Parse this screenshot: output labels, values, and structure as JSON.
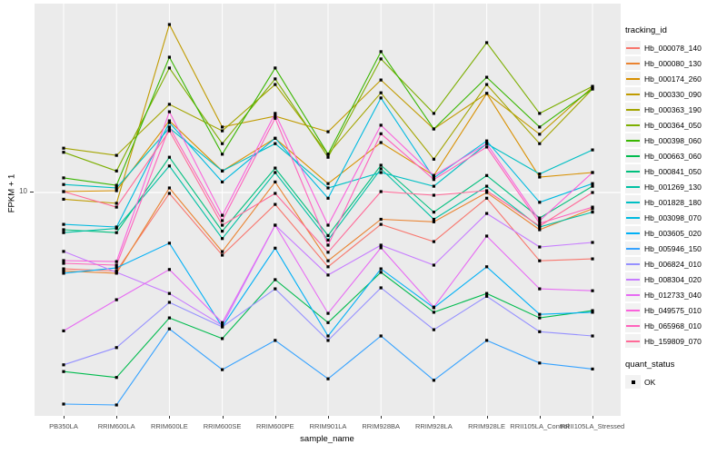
{
  "figure": {
    "y_axis_title": "FPKM + 1",
    "x_axis_title": "sample_name",
    "y_tick_label": "10",
    "panel_bg": "#EBEBEB",
    "gridline_color": "#FFFFFF",
    "point_color": "#000000",
    "tick_label_color": "#4D4D4D"
  },
  "legend": {
    "tracking_title": "tracking_id",
    "quant_title": "quant_status",
    "quant_items": [
      {
        "label": "OK",
        "marker": "black-square"
      }
    ]
  },
  "chart_data": {
    "type": "line",
    "title": "",
    "xlabel": "sample_name",
    "ylabel": "FPKM + 1",
    "y_scale": "log10",
    "y_ticks": [
      10
    ],
    "ylim_approx": [
      1,
      76
    ],
    "grid": "on",
    "legend_position": "right",
    "point_shape": "square",
    "quant_status_all": "OK",
    "categories": [
      "PB350LA",
      "RRIM600LA",
      "RRIM600LE",
      "RRIM600SE",
      "RRIM600PE",
      "RRIM901LA",
      "RRIM928BA",
      "RRIM928LA",
      "RRIM928LE",
      "RRII105LA_Control",
      "RRII105LA_Stressed"
    ],
    "series": [
      {
        "name": "Hb_000078_140",
        "color": "#F8766D",
        "values": [
          4.4,
          4.3,
          9.9,
          5.1,
          8.8,
          4.5,
          7.1,
          5.9,
          9.4,
          4.8,
          4.9
        ]
      },
      {
        "name": "Hb_000080_130",
        "color": "#EA8331",
        "values": [
          4.3,
          4.2,
          10.5,
          5.3,
          11.2,
          4.8,
          7.5,
          7.3,
          10.0,
          6.7,
          8.4
        ]
      },
      {
        "name": "Hb_000174_260",
        "color": "#D89000",
        "values": [
          10.1,
          10.2,
          21.6,
          12.6,
          17.9,
          11.0,
          17.1,
          12.0,
          29.0,
          11.8,
          12.4
        ]
      },
      {
        "name": "Hb_000330_090",
        "color": "#C09B00",
        "values": [
          9.3,
          8.9,
          60.8,
          20.2,
          22.7,
          19.2,
          33.5,
          19.8,
          29.0,
          18.7,
          31.0
        ]
      },
      {
        "name": "Hb_000363_190",
        "color": "#A3A500",
        "values": [
          16.1,
          14.9,
          25.8,
          19.4,
          31.9,
          15.1,
          29.2,
          14.3,
          31.9,
          16.9,
          30.4
        ]
      },
      {
        "name": "Hb_000364_050",
        "color": "#7CAE00",
        "values": [
          15.4,
          12.6,
          38.1,
          16.9,
          33.9,
          14.6,
          42.0,
          23.4,
          50.0,
          23.4,
          31.3
        ]
      },
      {
        "name": "Hb_000398_060",
        "color": "#39B600",
        "values": [
          11.7,
          10.8,
          42.8,
          15.1,
          38.1,
          15.1,
          45.4,
          19.8,
          34.5,
          20.2,
          30.4
        ]
      },
      {
        "name": "Hb_000663_060",
        "color": "#00BB4E",
        "values": [
          1.46,
          1.37,
          2.6,
          2.08,
          3.92,
          2.47,
          4.24,
          2.76,
          3.38,
          2.6,
          2.81
        ]
      },
      {
        "name": "Hb_000841_050",
        "color": "#00BF7D",
        "values": [
          6.7,
          6.5,
          14.6,
          6.6,
          13.0,
          6.3,
          13.4,
          8.1,
          12.0,
          7.6,
          10.7
        ]
      },
      {
        "name": "Hb_001269_130",
        "color": "#00C1A3",
        "values": [
          6.5,
          6.8,
          13.3,
          6.1,
          12.4,
          6.0,
          12.9,
          7.5,
          10.7,
          6.9,
          8.1
        ]
      },
      {
        "name": "Hb_001828_180",
        "color": "#00BFC4",
        "values": [
          10.9,
          10.5,
          20.0,
          12.6,
          16.9,
          10.5,
          12.4,
          10.7,
          16.9,
          12.2,
          15.8
        ]
      },
      {
        "name": "Hb_003098_070",
        "color": "#00BAE0",
        "values": [
          7.1,
          6.9,
          21.2,
          11.2,
          17.9,
          9.4,
          27.6,
          11.7,
          17.4,
          9.0,
          11.0
        ]
      },
      {
        "name": "Hb_003605_020",
        "color": "#00B0F6",
        "values": [
          4.2,
          4.45,
          5.8,
          2.36,
          5.5,
          2.14,
          4.4,
          2.9,
          4.5,
          2.7,
          2.76
        ]
      },
      {
        "name": "Hb_005946_150",
        "color": "#35A2FF",
        "values": [
          1.03,
          1.02,
          2.31,
          1.49,
          2.04,
          1.35,
          2.14,
          1.33,
          2.04,
          1.6,
          1.5
        ]
      },
      {
        "name": "Hb_006824_010",
        "color": "#9590FF",
        "values": [
          1.57,
          1.89,
          3.07,
          2.36,
          3.55,
          2.04,
          3.59,
          2.29,
          3.28,
          2.24,
          2.14
        ]
      },
      {
        "name": "Hb_008304_020",
        "color": "#C77CFF",
        "values": [
          5.31,
          4.24,
          3.38,
          2.4,
          7.04,
          4.12,
          5.68,
          4.58,
          7.98,
          5.57,
          5.85
        ]
      },
      {
        "name": "Hb_012733_040",
        "color": "#E76BF3",
        "values": [
          2.26,
          3.16,
          4.37,
          2.47,
          7.04,
          2.73,
          5.52,
          2.92,
          6.26,
          3.55,
          3.48
        ]
      },
      {
        "name": "Hb_049575_010",
        "color": "#FA62DB",
        "values": [
          4.81,
          4.76,
          23.8,
          7.83,
          23.4,
          7.04,
          20.6,
          12.0,
          16.9,
          7.39,
          12.4
        ]
      },
      {
        "name": "Hb_065968_010",
        "color": "#FF62BC",
        "values": [
          4.67,
          4.58,
          20.2,
          7.39,
          22.2,
          5.68,
          18.8,
          11.5,
          16.3,
          7.18,
          8.55
        ]
      },
      {
        "name": "Hb_159809_070",
        "color": "#FF6A98",
        "values": [
          10.1,
          8.55,
          19.4,
          7.04,
          9.9,
          5.26,
          10.1,
          9.71,
          10.2,
          6.97,
          10.0
        ]
      }
    ]
  }
}
